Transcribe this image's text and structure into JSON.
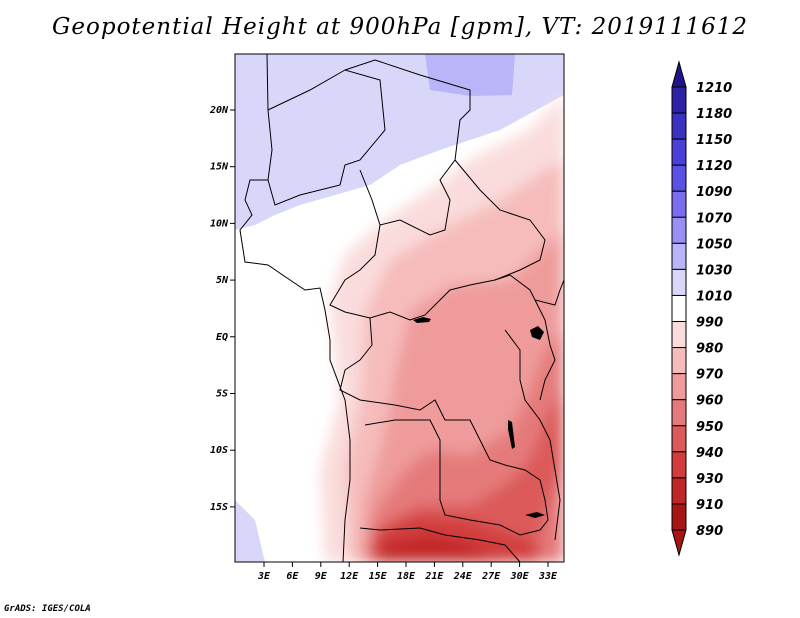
{
  "title": "Geopotential Height at 900hPa [gpm], VT: 2019111612",
  "footer": "GrADS: IGES/COLA",
  "map": {
    "lon_labels": [
      "3E",
      "6E",
      "9E",
      "12E",
      "15E",
      "18E",
      "21E",
      "24E",
      "27E",
      "30E",
      "33E"
    ],
    "lat_labels": [
      "20N",
      "15N",
      "10N",
      "5N",
      "EQ",
      "5S",
      "10S",
      "15S"
    ]
  },
  "colorbar": {
    "levels": [
      "1210",
      "1180",
      "1150",
      "1120",
      "1090",
      "1070",
      "1050",
      "1030",
      "1010",
      "990",
      "980",
      "970",
      "960",
      "950",
      "940",
      "930",
      "910",
      "890"
    ],
    "colors": [
      "#201489",
      "#2d22a6",
      "#3a31c1",
      "#4a3fd7",
      "#5c51e5",
      "#7a6df0",
      "#9a8ff5",
      "#bab4f8",
      "#d8d7fa",
      "#ffffff",
      "#fadcdc",
      "#f6bcbc",
      "#ef9b9b",
      "#e57a7a",
      "#dc5a5a",
      "#d23c3c",
      "#c12626",
      "#a81515"
    ]
  }
}
